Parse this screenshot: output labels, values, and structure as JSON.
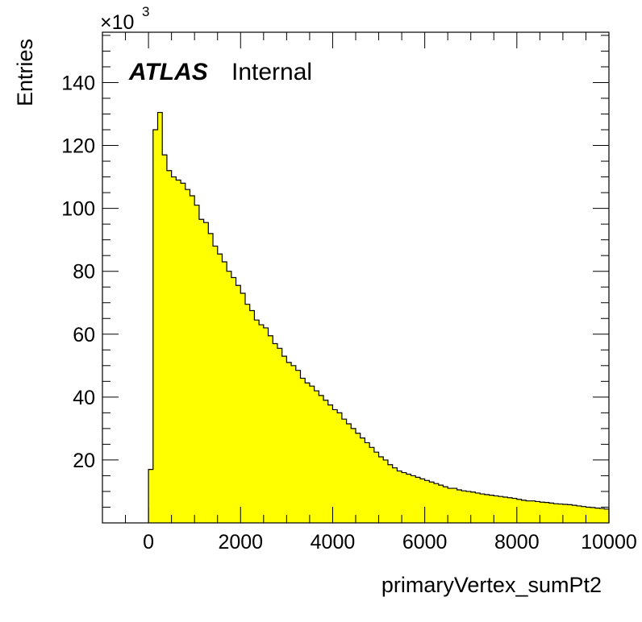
{
  "chart_data": {
    "type": "histogram",
    "fill_color": "#ffff00",
    "line_color": "#000000",
    "xlabel": "primaryVertex_sumPt2",
    "ylabel": "Entries",
    "y_multiplier_base": "×10",
    "y_multiplier_exp": "3",
    "y_unit_scale": 1000,
    "xlim": [
      -1000,
      10000
    ],
    "ylim": [
      0,
      156000
    ],
    "x_ticks": [
      0,
      2000,
      4000,
      6000,
      8000,
      10000
    ],
    "x_tick_labels": [
      "0",
      "2000",
      "4000",
      "6000",
      "8000",
      "10000"
    ],
    "y_ticks": [
      20,
      40,
      60,
      80,
      100,
      120,
      140
    ],
    "y_tick_labels": [
      "20",
      "40",
      "60",
      "80",
      "100",
      "120",
      "140"
    ],
    "bin_width": 100,
    "bin_edges_start": 0,
    "bin_values": [
      17000,
      125000,
      130500,
      117000,
      112000,
      110000,
      109000,
      108000,
      106000,
      104000,
      101000,
      96500,
      95500,
      92000,
      88000,
      85500,
      83000,
      80000,
      78000,
      75500,
      73000,
      69500,
      67500,
      64500,
      63000,
      62000,
      59500,
      57000,
      55500,
      53000,
      51000,
      50000,
      48500,
      46000,
      44500,
      43500,
      42000,
      40500,
      39000,
      37500,
      36000,
      35000,
      33000,
      31500,
      30000,
      28500,
      27000,
      25500,
      24000,
      22500,
      21000,
      20000,
      18500,
      17500,
      16500,
      16000,
      15500,
      15000,
      14500,
      14000,
      13500,
      13000,
      12500,
      12000,
      11500,
      11000,
      11000,
      10500,
      10200,
      10000,
      9800,
      9500,
      9200,
      9000,
      8800,
      8600,
      8400,
      8200,
      8000,
      7800,
      7500,
      7200,
      7000,
      7000,
      6800,
      6600,
      6500,
      6300,
      6100,
      6000,
      5900,
      5800,
      5600,
      5400,
      5200,
      5000,
      4900,
      4700,
      4600,
      4400
    ],
    "annotation": {
      "atlas_label": "ATLAS",
      "status_label": "Internal"
    }
  }
}
